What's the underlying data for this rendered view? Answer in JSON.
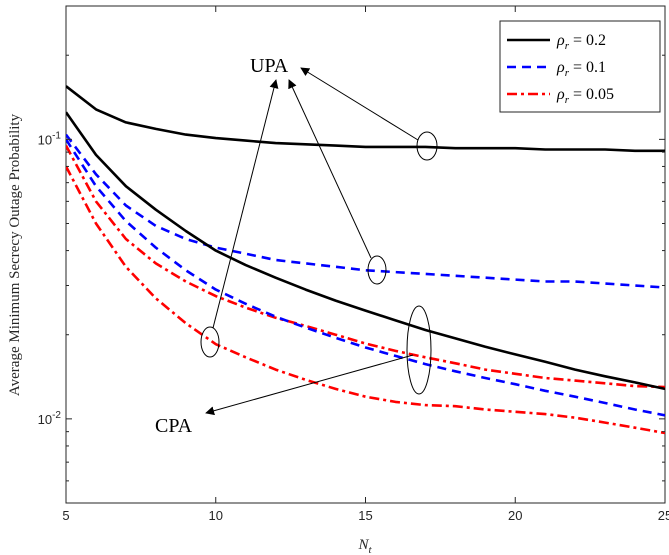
{
  "chart_data": {
    "type": "line",
    "title": "",
    "xlabel": "N_t",
    "ylabel": "Average Minimum Secrecy Outage Probability",
    "xlim": [
      5,
      25
    ],
    "ylim": [
      0.005,
      0.3
    ],
    "yscale": "log",
    "grid": false,
    "legend_position": "top-right",
    "x_ticks": [
      5,
      10,
      15,
      20,
      25
    ],
    "x_tick_labels": [
      "5",
      "10",
      "15",
      "20",
      "25"
    ],
    "y_ticks": [
      0.01,
      0.1
    ],
    "y_tick_labels": [
      "10-2",
      "10-1"
    ],
    "legend": [
      {
        "label": "ρr = 0.2",
        "color": "#000000",
        "dash": "solid"
      },
      {
        "label": "ρr = 0.1",
        "color": "#0000ff",
        "dash": "dashed"
      },
      {
        "label": "ρr = 0.05",
        "color": "#ff0000",
        "dash": "dashdot"
      }
    ],
    "x": [
      5,
      6,
      7,
      8,
      9,
      10,
      11,
      12,
      13,
      14,
      15,
      16,
      17,
      18,
      19,
      20,
      21,
      22,
      23,
      24,
      25
    ],
    "series": [
      {
        "name": "ρr = 0.2",
        "group": "UPA",
        "color": "#000000",
        "dash": "solid",
        "values": [
          0.155,
          0.128,
          0.115,
          0.109,
          0.104,
          0.101,
          0.099,
          0.097,
          0.096,
          0.095,
          0.094,
          0.094,
          0.094,
          0.093,
          0.093,
          0.093,
          0.092,
          0.092,
          0.092,
          0.091,
          0.091
        ]
      },
      {
        "name": "ρr = 0.1",
        "group": "UPA",
        "color": "#0000ff",
        "dash": "dashed",
        "values": [
          0.104,
          0.075,
          0.058,
          0.049,
          0.044,
          0.041,
          0.039,
          0.037,
          0.036,
          0.035,
          0.034,
          0.0335,
          0.033,
          0.0325,
          0.032,
          0.0315,
          0.031,
          0.031,
          0.0305,
          0.03,
          0.0295
        ]
      },
      {
        "name": "ρr = 0.05",
        "group": "UPA",
        "color": "#ff0000",
        "dash": "dashdot",
        "values": [
          0.095,
          0.06,
          0.044,
          0.036,
          0.031,
          0.0275,
          0.025,
          0.023,
          0.0215,
          0.02,
          0.0186,
          0.0175,
          0.0166,
          0.0158,
          0.015,
          0.0145,
          0.014,
          0.0137,
          0.0134,
          0.0131,
          0.013
        ]
      },
      {
        "name": "ρr = 0.2",
        "group": "CPA",
        "color": "#000000",
        "dash": "solid",
        "values": [
          0.125,
          0.088,
          0.068,
          0.056,
          0.047,
          0.04,
          0.0355,
          0.032,
          0.029,
          0.0265,
          0.0244,
          0.0225,
          0.0208,
          0.0194,
          0.0181,
          0.017,
          0.016,
          0.015,
          0.0142,
          0.0135,
          0.0128
        ]
      },
      {
        "name": "ρr = 0.1",
        "group": "CPA",
        "color": "#0000ff",
        "dash": "dashed",
        "values": [
          0.1,
          0.068,
          0.051,
          0.041,
          0.034,
          0.029,
          0.0258,
          0.0232,
          0.0212,
          0.0195,
          0.018,
          0.0168,
          0.0157,
          0.0148,
          0.014,
          0.0133,
          0.0126,
          0.012,
          0.0114,
          0.0108,
          0.0103
        ]
      },
      {
        "name": "ρr = 0.05",
        "group": "CPA",
        "color": "#ff0000",
        "dash": "dashdot",
        "values": [
          0.08,
          0.05,
          0.035,
          0.027,
          0.022,
          0.0185,
          0.0166,
          0.015,
          0.0138,
          0.0128,
          0.012,
          0.0115,
          0.0112,
          0.0111,
          0.0108,
          0.0106,
          0.0104,
          0.0101,
          0.0097,
          0.0093,
          0.0089
        ]
      }
    ],
    "annotations": [
      {
        "text": "UPA"
      },
      {
        "text": "CPA"
      }
    ]
  }
}
